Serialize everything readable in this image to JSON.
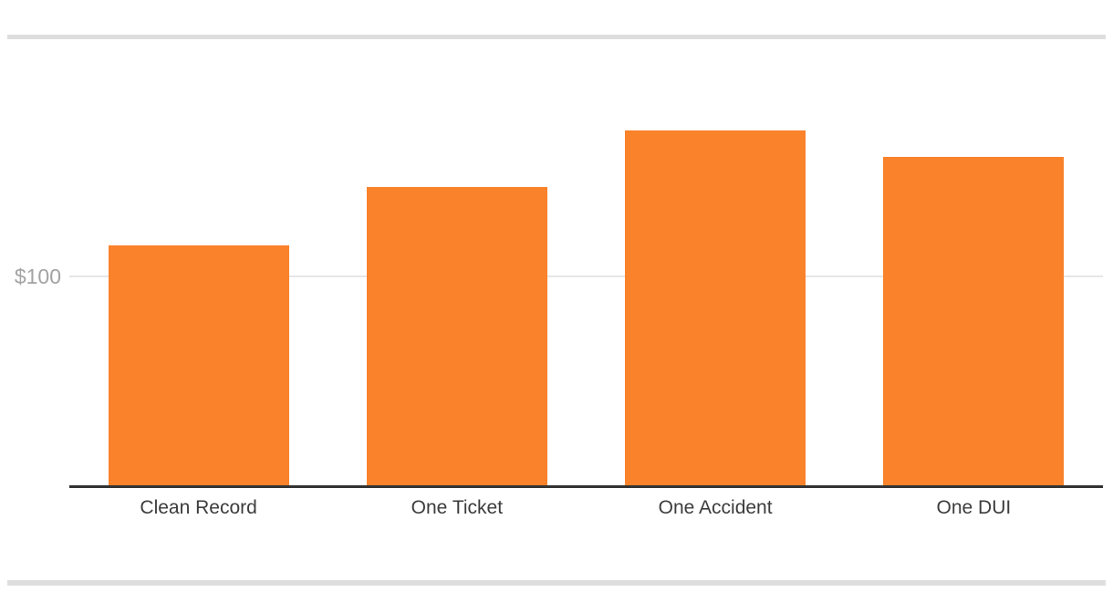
{
  "chart_data": {
    "type": "bar",
    "title": "",
    "categories": [
      "Clean Record",
      "One Ticket",
      "One Accident",
      "One DUI"
    ],
    "values": [
      115,
      143,
      170,
      157
    ],
    "xlabel": "",
    "ylabel": "",
    "ylim": [
      0,
      185
    ],
    "yticks": [
      {
        "value": 100,
        "label": "$100"
      }
    ],
    "grid": "single horizontal gridline at $100",
    "legend": "none",
    "bar_color": "#F9822A"
  },
  "colors": {
    "bar": "#F9822A",
    "axis_line": "#333333",
    "gridline": "#e6e6e6",
    "tick_label": "#a3a3a3",
    "category_label": "#3c3c3c",
    "divider": "#dedede",
    "background": "#ffffff"
  }
}
